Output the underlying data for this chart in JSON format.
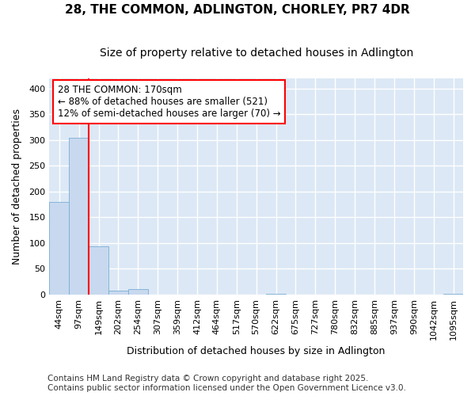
{
  "title1": "28, THE COMMON, ADLINGTON, CHORLEY, PR7 4DR",
  "title2": "Size of property relative to detached houses in Adlington",
  "xlabel": "Distribution of detached houses by size in Adlington",
  "ylabel": "Number of detached properties",
  "categories": [
    "44sqm",
    "97sqm",
    "149sqm",
    "202sqm",
    "254sqm",
    "307sqm",
    "359sqm",
    "412sqm",
    "464sqm",
    "517sqm",
    "570sqm",
    "622sqm",
    "675sqm",
    "727sqm",
    "780sqm",
    "832sqm",
    "885sqm",
    "937sqm",
    "990sqm",
    "1042sqm",
    "1095sqm"
  ],
  "values": [
    180,
    305,
    93,
    8,
    10,
    0,
    0,
    0,
    0,
    0,
    0,
    1,
    0,
    0,
    0,
    0,
    0,
    0,
    0,
    0,
    1
  ],
  "bar_color": "#c8d9ef",
  "bar_edge_color": "#7aadd4",
  "vline_x_index": 2,
  "vline_color": "red",
  "annotation_text": "28 THE COMMON: 170sqm\n← 88% of detached houses are smaller (521)\n12% of semi-detached houses are larger (70) →",
  "annotation_box_color": "white",
  "annotation_box_edge_color": "red",
  "footnote1": "Contains HM Land Registry data © Crown copyright and database right 2025.",
  "footnote2": "Contains public sector information licensed under the Open Government Licence v3.0.",
  "ylim": [
    0,
    420
  ],
  "yticks": [
    0,
    50,
    100,
    150,
    200,
    250,
    300,
    350,
    400
  ],
  "plot_bg_color": "#dce8f5",
  "figure_bg_color": "#ffffff",
  "grid_color": "#ffffff",
  "title_fontsize": 11,
  "subtitle_fontsize": 10,
  "axis_label_fontsize": 9,
  "tick_fontsize": 8,
  "annotation_fontsize": 8.5,
  "footnote_fontsize": 7.5
}
